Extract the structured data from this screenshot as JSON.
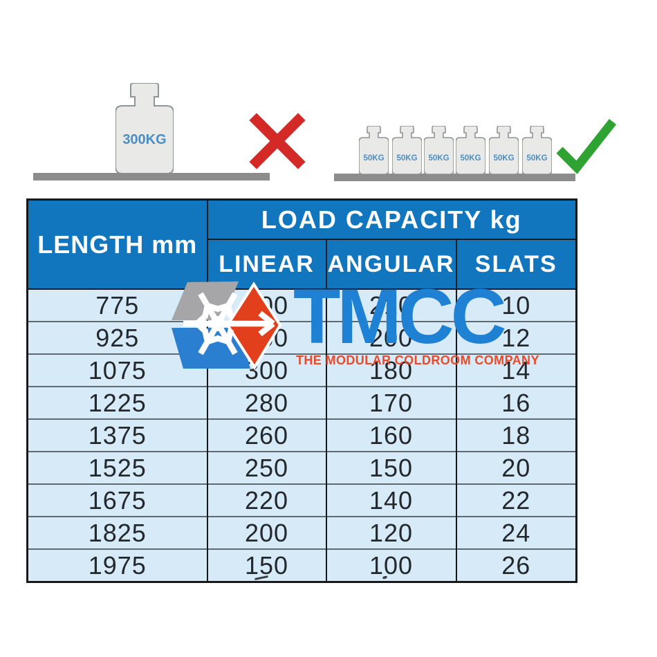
{
  "illustration": {
    "incorrect": {
      "weight_label": "300KG",
      "icon": "red-x"
    },
    "correct": {
      "weight_label": "50KG",
      "weight_count": 6,
      "icon": "green-check"
    }
  },
  "table": {
    "header": {
      "length": "LENGTH mm",
      "load_capacity": "LOAD CAPACITY kg",
      "linear": "LINEAR",
      "angular": "ANGULAR",
      "slats": "SLATS"
    },
    "rows": [
      {
        "length": "775",
        "linear": "400",
        "angular": "210",
        "slats": "10"
      },
      {
        "length": "925",
        "linear": "350",
        "angular": "200",
        "slats": "12"
      },
      {
        "length": "1075",
        "linear": "300",
        "angular": "180",
        "slats": "14"
      },
      {
        "length": "1225",
        "linear": "280",
        "angular": "170",
        "slats": "16"
      },
      {
        "length": "1375",
        "linear": "260",
        "angular": "160",
        "slats": "18"
      },
      {
        "length": "1525",
        "linear": "250",
        "angular": "150",
        "slats": "20"
      },
      {
        "length": "1675",
        "linear": "220",
        "angular": "140",
        "slats": "22"
      },
      {
        "length": "1825",
        "linear": "200",
        "angular": "120",
        "slats": "24"
      },
      {
        "length": "1975",
        "linear": "150",
        "angular": "100",
        "slats": "26"
      }
    ]
  },
  "watermark": {
    "acronym": "TMCC",
    "tagline": "THE MODULAR COLDROOM COMPANY"
  },
  "colors": {
    "header_blue": "#1276bf",
    "row_light_blue": "#d7eaf8",
    "brand_blue": "#1e81d3",
    "brand_red": "#e84a2a",
    "cross_red": "#d32a28",
    "check_green": "#2ea331",
    "weight_label_blue": "#4c8ec2",
    "shelf_gray": "#8c8c8c",
    "logo_gray": "#a6a6a9",
    "logo_blue": "#2b7fd0",
    "logo_red": "#e23f1c"
  }
}
